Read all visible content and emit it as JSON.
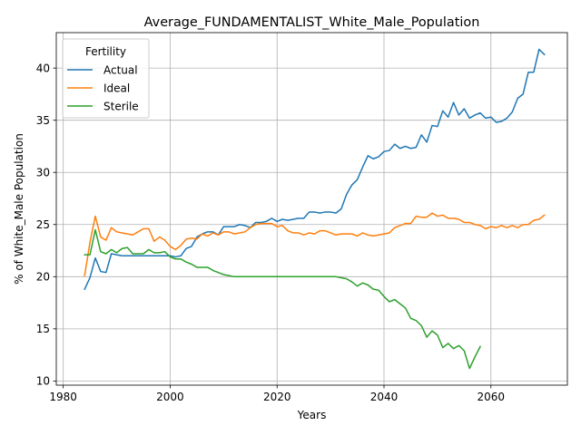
{
  "chart_data": {
    "type": "line",
    "title": "Average_FUNDAMENTALIST_White_Male_Population",
    "xlabel": "Years",
    "ylabel": "% of White_Male Population",
    "xlim": [
      1978.7,
      2074.3
    ],
    "ylim": [
      9.6,
      43.4
    ],
    "xticks": [
      1980,
      2000,
      2020,
      2040,
      2060
    ],
    "yticks": [
      10,
      15,
      20,
      25,
      30,
      35,
      40
    ],
    "grid": true,
    "legend": {
      "title": "Fertility",
      "placement": "top-left"
    },
    "series": [
      {
        "name": "Actual",
        "color": "#1f77b4",
        "x": [
          1984,
          1985,
          1986,
          1987,
          1988,
          1989,
          1990,
          1991,
          1992,
          1993,
          1994,
          1995,
          1996,
          1997,
          1998,
          1999,
          2000,
          2001,
          2002,
          2003,
          2004,
          2005,
          2006,
          2007,
          2008,
          2009,
          2010,
          2011,
          2012,
          2013,
          2014,
          2015,
          2016,
          2017,
          2018,
          2019,
          2020,
          2021,
          2022,
          2023,
          2024,
          2025,
          2026,
          2027,
          2028,
          2029,
          2030,
          2031,
          2032,
          2033,
          2034,
          2035,
          2036,
          2037,
          2038,
          2039,
          2040,
          2041,
          2042,
          2043,
          2044,
          2045,
          2046,
          2047,
          2048,
          2049,
          2050,
          2051,
          2052,
          2053,
          2054,
          2055,
          2056,
          2057,
          2058,
          2059,
          2060,
          2061,
          2062,
          2063,
          2064,
          2065,
          2066,
          2067,
          2068,
          2069,
          2070
        ],
        "y": [
          18.8,
          19.9,
          21.8,
          20.5,
          20.4,
          22.2,
          22.1,
          22.0,
          22.0,
          22.0,
          22.0,
          22.0,
          22.0,
          22.0,
          22.0,
          22.0,
          22.0,
          21.9,
          22.0,
          22.7,
          22.9,
          23.8,
          24.1,
          24.3,
          24.3,
          24.0,
          24.8,
          24.8,
          24.8,
          25.0,
          24.9,
          24.7,
          25.2,
          25.2,
          25.3,
          25.6,
          25.3,
          25.5,
          25.4,
          25.5,
          25.6,
          25.6,
          26.2,
          26.2,
          26.1,
          26.2,
          26.2,
          26.1,
          26.5,
          27.9,
          28.8,
          29.3,
          30.5,
          31.6,
          31.3,
          31.5,
          32.0,
          32.1,
          32.7,
          32.3,
          32.5,
          32.3,
          32.4,
          33.6,
          32.9,
          34.5,
          34.4,
          35.9,
          35.3,
          36.7,
          35.5,
          36.1,
          35.2,
          35.5,
          35.7,
          35.2,
          35.3,
          34.8,
          34.9,
          35.2,
          35.8,
          37.1,
          37.5,
          39.6,
          39.6,
          41.8,
          41.3
        ]
      },
      {
        "name": "Ideal",
        "color": "#ff7f0e",
        "x": [
          1984,
          1985,
          1986,
          1987,
          1988,
          1989,
          1990,
          1991,
          1992,
          1993,
          1994,
          1995,
          1996,
          1997,
          1998,
          1999,
          2000,
          2001,
          2002,
          2003,
          2004,
          2005,
          2006,
          2007,
          2008,
          2009,
          2010,
          2011,
          2012,
          2013,
          2014,
          2015,
          2016,
          2017,
          2018,
          2019,
          2020,
          2021,
          2022,
          2023,
          2024,
          2025,
          2026,
          2027,
          2028,
          2029,
          2030,
          2031,
          2032,
          2033,
          2034,
          2035,
          2036,
          2037,
          2038,
          2039,
          2040,
          2041,
          2042,
          2043,
          2044,
          2045,
          2046,
          2047,
          2048,
          2049,
          2050,
          2051,
          2052,
          2053,
          2054,
          2055,
          2056,
          2057,
          2058,
          2059,
          2060,
          2061,
          2062,
          2063,
          2064,
          2065,
          2066,
          2067,
          2068,
          2069,
          2070
        ],
        "y": [
          20.1,
          23.3,
          25.8,
          23.8,
          23.5,
          24.7,
          24.3,
          24.2,
          24.1,
          24.0,
          24.3,
          24.6,
          24.6,
          23.4,
          23.8,
          23.5,
          22.9,
          22.6,
          23.0,
          23.6,
          23.7,
          23.6,
          24.1,
          23.9,
          24.2,
          24.0,
          24.3,
          24.3,
          24.1,
          24.2,
          24.3,
          24.7,
          25.0,
          25.1,
          25.1,
          25.1,
          24.8,
          24.9,
          24.4,
          24.2,
          24.2,
          24.0,
          24.2,
          24.1,
          24.4,
          24.4,
          24.2,
          24.0,
          24.1,
          24.1,
          24.1,
          23.9,
          24.2,
          24.0,
          23.9,
          24.0,
          24.1,
          24.2,
          24.7,
          24.9,
          25.1,
          25.1,
          25.8,
          25.7,
          25.7,
          26.1,
          25.8,
          25.9,
          25.6,
          25.6,
          25.5,
          25.2,
          25.2,
          25.0,
          24.9,
          24.6,
          24.8,
          24.7,
          24.9,
          24.7,
          24.9,
          24.7,
          25.0,
          25.0,
          25.4,
          25.5,
          25.9
        ]
      },
      {
        "name": "Sterile",
        "color": "#2ca02c",
        "x": [
          1984,
          1985,
          1986,
          1987,
          1988,
          1989,
          1990,
          1991,
          1992,
          1993,
          1994,
          1995,
          1996,
          1997,
          1998,
          1999,
          2000,
          2001,
          2002,
          2003,
          2004,
          2005,
          2006,
          2007,
          2008,
          2009,
          2010,
          2011,
          2012,
          2013,
          2014,
          2015,
          2016,
          2017,
          2018,
          2019,
          2020,
          2021,
          2022,
          2023,
          2024,
          2025,
          2026,
          2027,
          2028,
          2029,
          2030,
          2031,
          2032,
          2033,
          2034,
          2035,
          2036,
          2037,
          2038,
          2039,
          2040,
          2041,
          2042,
          2043,
          2044,
          2045,
          2046,
          2047,
          2048,
          2049,
          2050,
          2051,
          2052,
          2053,
          2054,
          2055,
          2056,
          2057,
          2058
        ],
        "y": [
          22.1,
          22.1,
          24.5,
          22.4,
          22.2,
          22.6,
          22.3,
          22.7,
          22.8,
          22.2,
          22.2,
          22.2,
          22.6,
          22.3,
          22.3,
          22.4,
          21.9,
          21.7,
          21.7,
          21.4,
          21.2,
          20.9,
          20.9,
          20.9,
          20.6,
          20.4,
          20.2,
          20.1,
          20.0,
          20.0,
          20.0,
          20.0,
          20.0,
          20.0,
          20.0,
          20.0,
          20.0,
          20.0,
          20.0,
          20.0,
          20.0,
          20.0,
          20.0,
          20.0,
          20.0,
          20.0,
          20.0,
          20.0,
          19.9,
          19.8,
          19.5,
          19.1,
          19.4,
          19.2,
          18.8,
          18.7,
          18.1,
          17.6,
          17.8,
          17.4,
          17.0,
          16.0,
          15.8,
          15.3,
          14.2,
          14.8,
          14.4,
          13.2,
          13.6,
          13.1,
          13.4,
          12.9,
          11.2,
          12.3,
          13.3
        ]
      }
    ]
  }
}
